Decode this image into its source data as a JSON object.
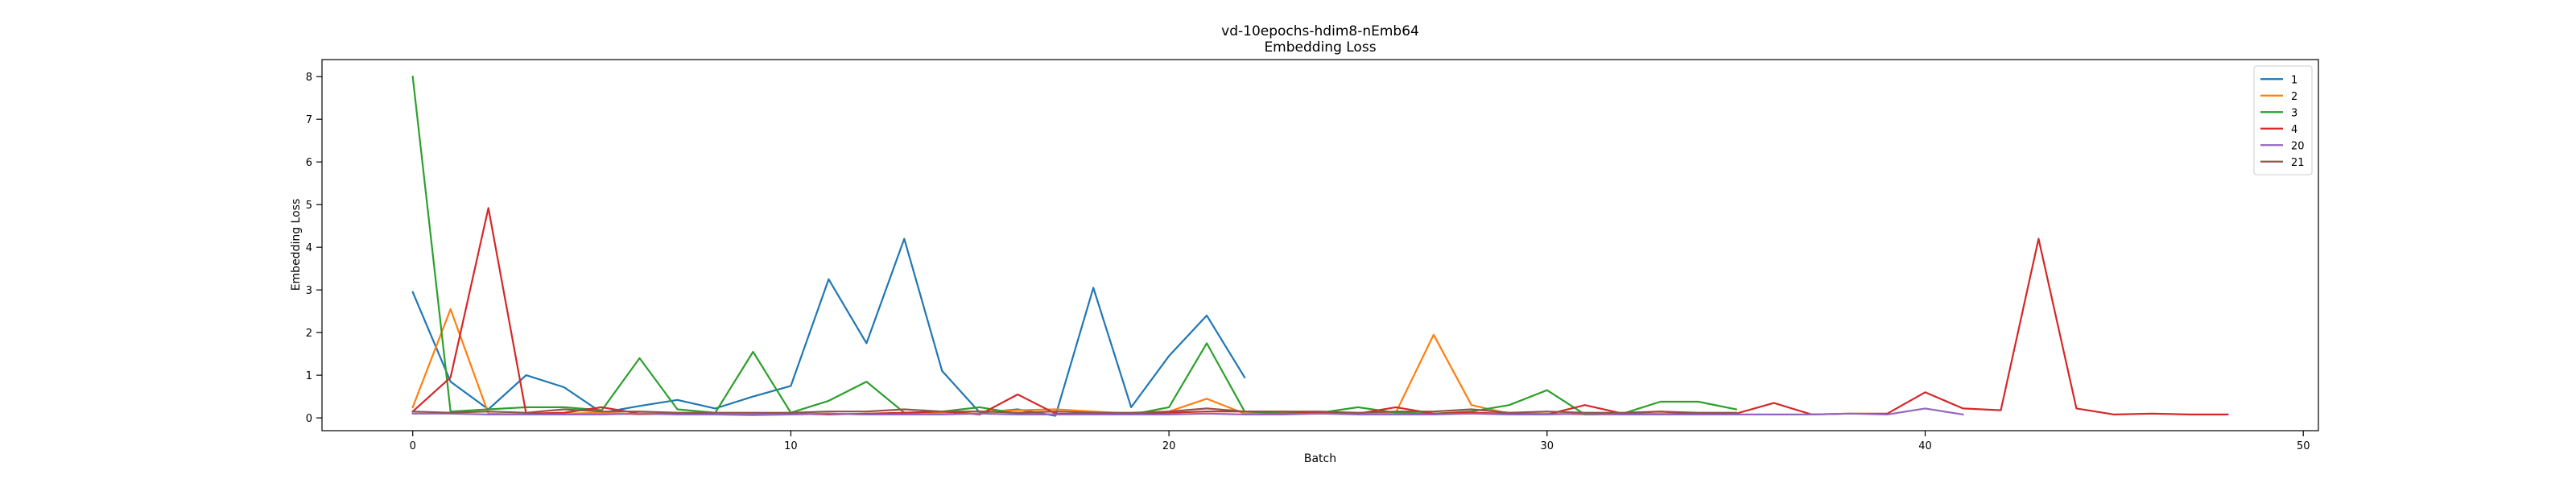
{
  "chart_data": {
    "type": "line",
    "title": "vd-10epochs-hdim8-nEmb64",
    "subtitle": "Embedding Loss",
    "xlabel": "Batch",
    "ylabel": "Embedding Loss",
    "xlim": [
      -2.4,
      50.4
    ],
    "ylim": [
      -0.3,
      8.4
    ],
    "xticks": [
      0,
      10,
      20,
      30,
      40,
      50
    ],
    "yticks": [
      0,
      1,
      2,
      3,
      4,
      5,
      6,
      7,
      8
    ],
    "grid": false,
    "legend_position": "top-right",
    "series": [
      {
        "name": "1",
        "color": "#1f77b4",
        "x": [
          0,
          1,
          2,
          3,
          4,
          5,
          6,
          7,
          8,
          9,
          10,
          11,
          12,
          13,
          14,
          15,
          16,
          17,
          18,
          19,
          20,
          21,
          22
        ],
        "y": [
          2.95,
          0.85,
          0.2,
          1.0,
          0.72,
          0.12,
          0.28,
          0.42,
          0.22,
          0.5,
          0.75,
          3.25,
          1.75,
          4.2,
          1.1,
          0.12,
          0.2,
          0.05,
          3.05,
          0.25,
          1.45,
          2.4,
          0.95
        ]
      },
      {
        "name": "2",
        "color": "#ff7f0e",
        "x": [
          0,
          1,
          2,
          3,
          4,
          5,
          6,
          7,
          8,
          9,
          10,
          11,
          12,
          13,
          14,
          15,
          16,
          17,
          18,
          19,
          20,
          21,
          22,
          23,
          24,
          25,
          26,
          27,
          28,
          29,
          30,
          31,
          32,
          33,
          34,
          35
        ],
        "y": [
          0.25,
          2.55,
          0.1,
          0.08,
          0.1,
          0.12,
          0.08,
          0.1,
          0.08,
          0.06,
          0.08,
          0.1,
          0.08,
          0.1,
          0.12,
          0.15,
          0.18,
          0.2,
          0.15,
          0.1,
          0.15,
          0.45,
          0.1,
          0.12,
          0.1,
          0.1,
          0.12,
          1.95,
          0.3,
          0.1,
          0.1,
          0.08,
          0.08,
          0.1,
          0.1,
          0.1
        ]
      },
      {
        "name": "3",
        "color": "#2ca02c",
        "x": [
          0,
          1,
          2,
          3,
          4,
          5,
          6,
          7,
          8,
          9,
          10,
          11,
          12,
          13,
          14,
          15,
          16,
          17,
          18,
          19,
          20,
          21,
          22,
          23,
          24,
          25,
          26,
          27,
          28,
          29,
          30,
          31,
          32,
          33,
          34,
          35
        ],
        "y": [
          8.0,
          0.15,
          0.2,
          0.25,
          0.25,
          0.18,
          1.4,
          0.2,
          0.12,
          1.55,
          0.12,
          0.4,
          0.85,
          0.12,
          0.15,
          0.25,
          0.1,
          0.08,
          0.12,
          0.08,
          0.25,
          1.75,
          0.15,
          0.1,
          0.12,
          0.25,
          0.12,
          0.1,
          0.15,
          0.3,
          0.65,
          0.08,
          0.1,
          0.38,
          0.38,
          0.2
        ]
      },
      {
        "name": "4",
        "color": "#d62728",
        "x": [
          0,
          1,
          2,
          3,
          4,
          5,
          6,
          7,
          8,
          9,
          10,
          11,
          12,
          13,
          14,
          15,
          16,
          17,
          18,
          19,
          20,
          21,
          22,
          23,
          24,
          25,
          26,
          27,
          28,
          29,
          30,
          31,
          32,
          33,
          34,
          35,
          36,
          37,
          38,
          39,
          40,
          41,
          42,
          43,
          44,
          45,
          46,
          47,
          48
        ],
        "y": [
          0.15,
          0.95,
          4.92,
          0.1,
          0.12,
          0.25,
          0.1,
          0.1,
          0.08,
          0.08,
          0.1,
          0.08,
          0.1,
          0.12,
          0.15,
          0.08,
          0.55,
          0.1,
          0.08,
          0.08,
          0.12,
          0.15,
          0.15,
          0.15,
          0.12,
          0.1,
          0.25,
          0.1,
          0.12,
          0.1,
          0.08,
          0.3,
          0.1,
          0.15,
          0.08,
          0.1,
          0.35,
          0.08,
          0.1,
          0.1,
          0.6,
          0.22,
          0.18,
          4.2,
          0.22,
          0.08,
          0.1,
          0.08,
          0.08
        ]
      },
      {
        "name": "20",
        "color": "#9467bd",
        "x": [
          0,
          1,
          2,
          3,
          4,
          5,
          6,
          7,
          8,
          9,
          10,
          11,
          12,
          13,
          14,
          15,
          16,
          17,
          18,
          19,
          20,
          21,
          22,
          23,
          24,
          25,
          26,
          27,
          28,
          29,
          30,
          31,
          32,
          33,
          34,
          35,
          36,
          37,
          38,
          39,
          40,
          41
        ],
        "y": [
          0.1,
          0.1,
          0.08,
          0.08,
          0.08,
          0.08,
          0.1,
          0.08,
          0.08,
          0.08,
          0.08,
          0.1,
          0.08,
          0.08,
          0.08,
          0.1,
          0.08,
          0.08,
          0.08,
          0.08,
          0.08,
          0.1,
          0.08,
          0.08,
          0.1,
          0.08,
          0.08,
          0.08,
          0.1,
          0.08,
          0.08,
          0.1,
          0.08,
          0.08,
          0.08,
          0.08,
          0.08,
          0.08,
          0.1,
          0.08,
          0.22,
          0.08
        ]
      },
      {
        "name": "21",
        "color": "#8c564b",
        "x": [
          0,
          1,
          2,
          3,
          4,
          5,
          6,
          7,
          8,
          9,
          10,
          11,
          12,
          13,
          14,
          15,
          16,
          17,
          18,
          19,
          20,
          21,
          22,
          23,
          24,
          25,
          26,
          27,
          28,
          29,
          30,
          31,
          32,
          33,
          34,
          35
        ],
        "y": [
          0.15,
          0.12,
          0.15,
          0.12,
          0.2,
          0.15,
          0.15,
          0.12,
          0.12,
          0.12,
          0.12,
          0.15,
          0.15,
          0.2,
          0.15,
          0.15,
          0.12,
          0.15,
          0.12,
          0.12,
          0.15,
          0.22,
          0.15,
          0.15,
          0.15,
          0.12,
          0.15,
          0.15,
          0.2,
          0.12,
          0.15,
          0.12,
          0.12,
          0.15,
          0.12,
          0.12
        ]
      }
    ]
  }
}
